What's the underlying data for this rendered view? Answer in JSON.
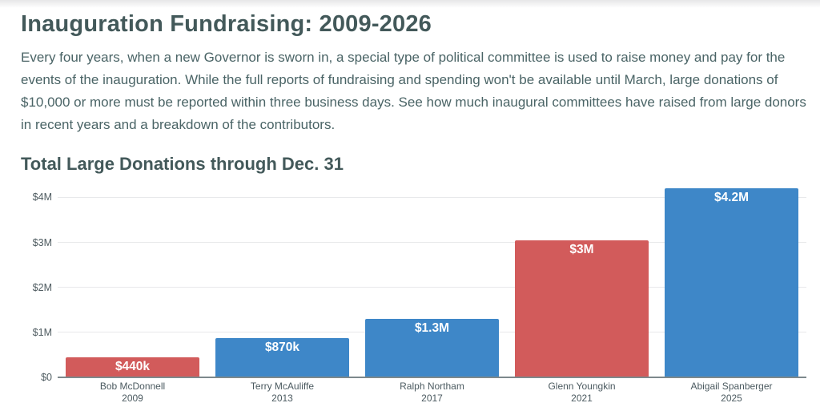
{
  "page": {
    "title": "Inauguration Fundraising: 2009-2026",
    "intro": "Every four years, when a new Governor is sworn in, a special type of political committee is used to raise money and pay for the events of the inauguration. While the full reports of fundraising and spending won't be available until March, large donations of $10,000 or more must be reported within three business days. See how much inaugural committees have raised from large donors in recent years and a breakdown of the contributors."
  },
  "chart_data": {
    "type": "bar",
    "title": "Total Large Donations through Dec. 31",
    "categories": [
      {
        "name": "Bob McDonnell",
        "year": "2009"
      },
      {
        "name": "Terry McAuliffe",
        "year": "2013"
      },
      {
        "name": "Ralph Northam",
        "year": "2017"
      },
      {
        "name": "Glenn Youngkin",
        "year": "2021"
      },
      {
        "name": "Abigail Spanberger",
        "year": "2025"
      }
    ],
    "values": [
      440000,
      870000,
      1300000,
      3050000,
      4200000
    ],
    "value_labels": [
      "$440k",
      "$870k",
      "$1.3M",
      "$3M",
      "$4.2M"
    ],
    "bar_colors": [
      "#d25b5b",
      "#3e87c8",
      "#3e87c8",
      "#d25b5b",
      "#3e87c8"
    ],
    "yticks": [
      {
        "value": 0,
        "label": "$0"
      },
      {
        "value": 1000000,
        "label": "$1M"
      },
      {
        "value": 2000000,
        "label": "$2M"
      },
      {
        "value": 3000000,
        "label": "$3M"
      },
      {
        "value": 4000000,
        "label": "$4M"
      }
    ],
    "ylim": [
      0,
      4310000
    ],
    "xlabel": "",
    "ylabel": "",
    "grid": true,
    "legend": "none"
  },
  "colors": {
    "red": "#d25b5b",
    "blue": "#3e87c8",
    "heading": "#43595a",
    "body_text": "#4a6466",
    "axis_text": "#4e5b60",
    "gridline": "#e8e9eb",
    "axis_line": "#7d898c",
    "bar_label": "#ffffff"
  }
}
